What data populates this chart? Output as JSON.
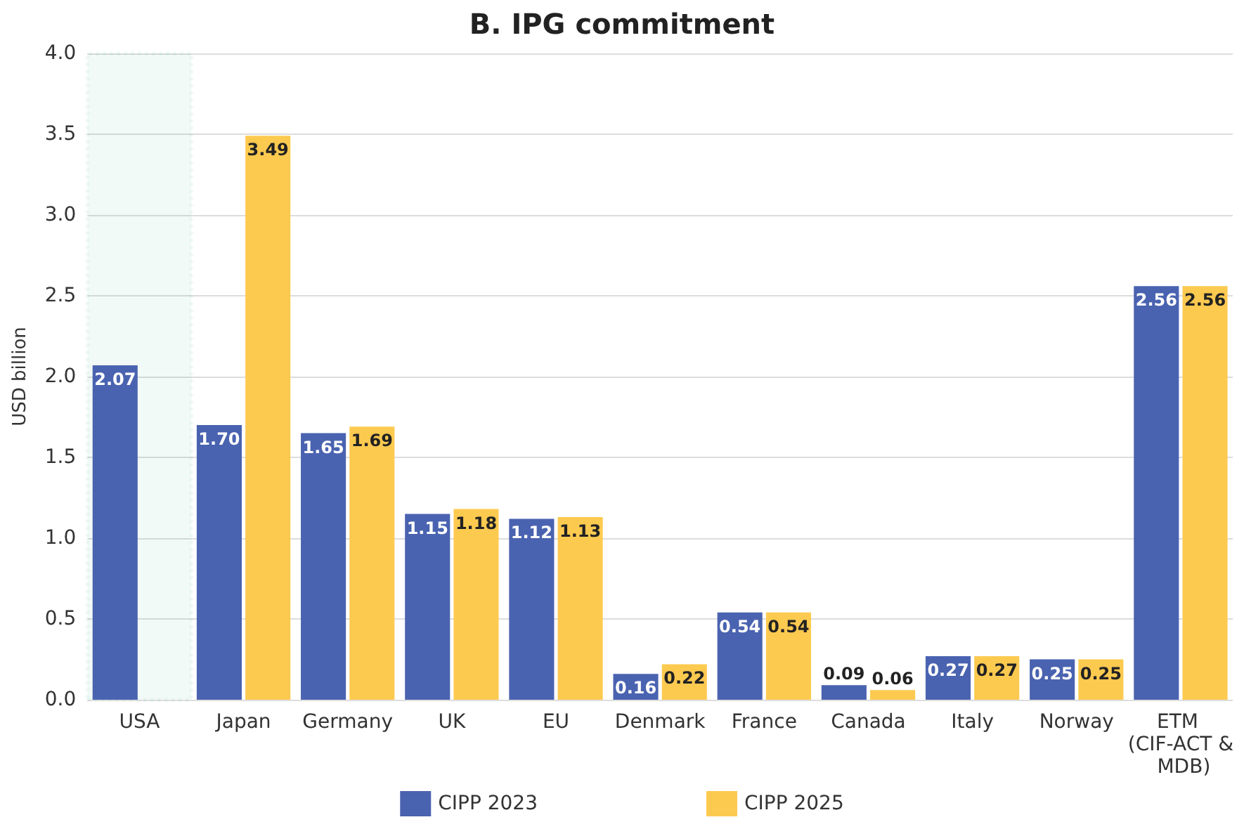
{
  "chart_data": {
    "type": "bar",
    "title": "B. IPG commitment",
    "ylabel": "USD billion",
    "categories": [
      "USA",
      "Japan",
      "Germany",
      "UK",
      "EU",
      "Denmark",
      "France",
      "Canada",
      "Italy",
      "Norway",
      "ETM (CIF-ACT & MDB)"
    ],
    "series": [
      {
        "name": "CIPP 2023",
        "color": "#4a63b0",
        "values": [
          2.07,
          1.7,
          1.65,
          1.15,
          1.12,
          0.16,
          0.54,
          0.09,
          0.27,
          0.25,
          2.56
        ],
        "value_labels": [
          "2.07",
          "1.70",
          "1.65",
          "1.15",
          "1.12",
          "0.16",
          "0.54",
          "0.09",
          "0.27",
          "0.25",
          "2.56"
        ]
      },
      {
        "name": "CIPP 2025",
        "color": "#fdca50",
        "values": [
          null,
          3.49,
          1.69,
          1.18,
          1.13,
          0.22,
          0.54,
          0.06,
          0.27,
          0.25,
          2.56
        ],
        "value_labels": [
          null,
          "3.49",
          "1.69",
          "1.18",
          "1.13",
          "0.22",
          "0.54",
          "0.06",
          "0.27",
          "0.25",
          "2.56"
        ]
      }
    ],
    "ylim": [
      0,
      4.0
    ],
    "yticks": [
      {
        "value": 0,
        "label": "0.0"
      },
      {
        "value": 0.5,
        "label": "0.5"
      },
      {
        "value": 1,
        "label": "1.0"
      },
      {
        "value": 1.5,
        "label": "1.5"
      },
      {
        "value": 2,
        "label": "2.0"
      },
      {
        "value": 2.5,
        "label": "2.5"
      },
      {
        "value": 3,
        "label": "3.0"
      },
      {
        "value": 3.5,
        "label": "3.5"
      },
      {
        "value": 4,
        "label": "4.0"
      }
    ],
    "grid": "y",
    "legend": "bottom",
    "bands": [
      {
        "axis": "x",
        "from": "USA",
        "to": "USA",
        "color": "#1aa87a"
      }
    ]
  }
}
